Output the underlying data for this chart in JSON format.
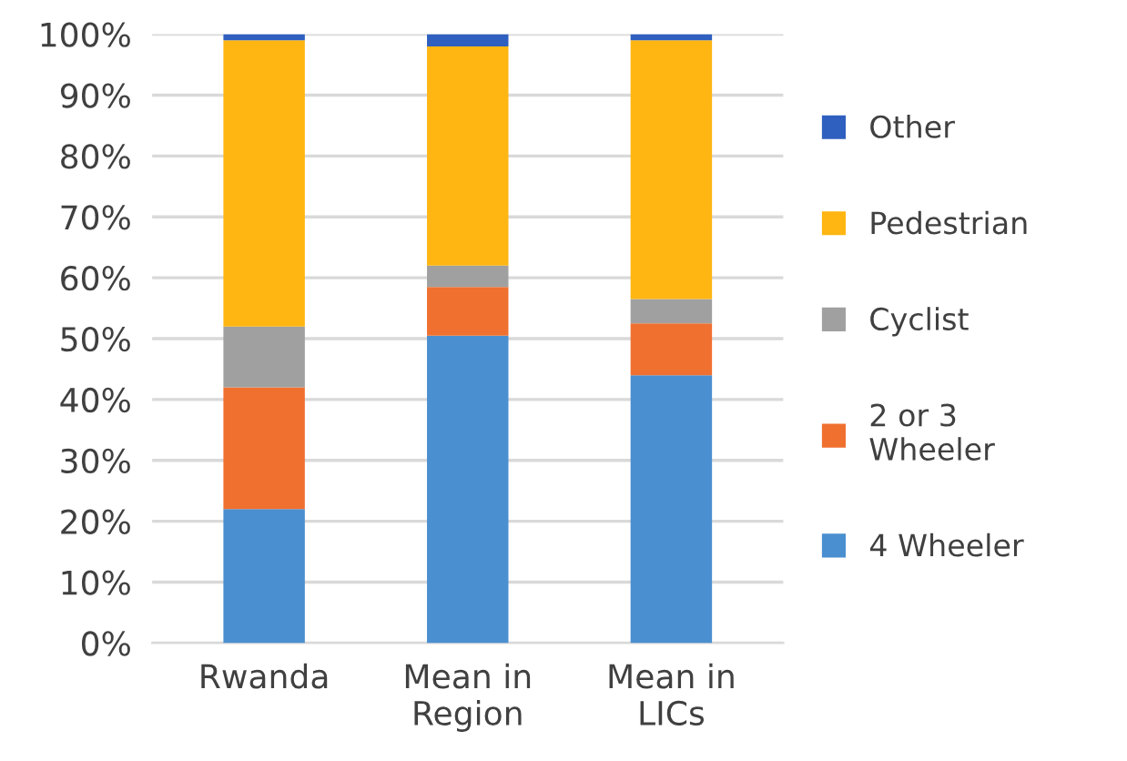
{
  "chart_data": {
    "type": "bar",
    "stacked": true,
    "categories": [
      "Rwanda",
      "Mean in\nRegion",
      "Mean in\nLICs"
    ],
    "series": [
      {
        "name": "4 Wheeler",
        "color": "#4a8fd0",
        "values": [
          22,
          50.5,
          44
        ]
      },
      {
        "name": "2 or 3\nWheeler",
        "color": "#f07030",
        "values": [
          20,
          8,
          8.5
        ]
      },
      {
        "name": "Cyclist",
        "color": "#a0a0a0",
        "values": [
          10,
          3.5,
          4
        ]
      },
      {
        "name": "Pedestrian",
        "color": "#ffb612",
        "values": [
          47,
          36,
          42.5
        ]
      },
      {
        "name": "Other",
        "color": "#2f5fbf",
        "values": [
          1,
          2,
          1
        ]
      }
    ],
    "ylim": [
      0,
      100
    ],
    "yticks": [
      {
        "value": 0,
        "label": "0%"
      },
      {
        "value": 10,
        "label": "10%"
      },
      {
        "value": 20,
        "label": "20%"
      },
      {
        "value": 30,
        "label": "30%"
      },
      {
        "value": 40,
        "label": "40%"
      },
      {
        "value": 50,
        "label": "50%"
      },
      {
        "value": 60,
        "label": "60%"
      },
      {
        "value": 70,
        "label": "70%"
      },
      {
        "value": 80,
        "label": "80%"
      },
      {
        "value": 90,
        "label": "90%"
      },
      {
        "value": 100,
        "label": "100%"
      }
    ],
    "grid": "y",
    "legend": "right"
  }
}
